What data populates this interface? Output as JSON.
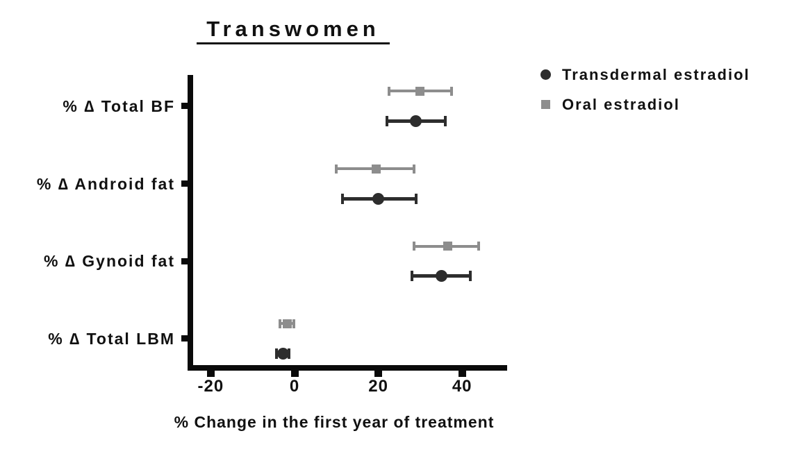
{
  "colors": {
    "transdermal": "#2d2d2d",
    "oral": "#8d8d8d",
    "axis": "#0a0a0a",
    "text": "#111111",
    "background": "#ffffff"
  },
  "legend": [
    {
      "name": "Transdermal estradiol",
      "marker": "circle",
      "color": "#2d2d2d"
    },
    {
      "name": "Oral estradiol",
      "marker": "square",
      "color": "#8d8d8d"
    }
  ],
  "chart_data": {
    "type": "scatter",
    "subtype": "horizontal-dot-plot-with-error-bars",
    "title": "Transwomen",
    "xlabel": "% Change in the first year of treatment",
    "ylabel": "",
    "categories": [
      "% ∆ Total BF",
      "% ∆ Android fat",
      "% ∆ Gynoid fat",
      "% ∆ Total LBM"
    ],
    "x_ticks": [
      -20,
      0,
      20,
      40
    ],
    "xlim": [
      -25.5,
      50.5
    ],
    "grid": false,
    "legend_position": "top-right",
    "row_order_within_group": [
      "Oral estradiol",
      "Transdermal estradiol"
    ],
    "series": [
      {
        "name": "Oral estradiol",
        "marker": "square",
        "color": "#8d8d8d",
        "points": [
          {
            "category": "% ∆ Total BF",
            "value": 30.0,
            "low": 22.5,
            "high": 37.5
          },
          {
            "category": "% ∆ Android fat",
            "value": 19.5,
            "low": 10.0,
            "high": 28.5
          },
          {
            "category": "% ∆ Gynoid fat",
            "value": 36.5,
            "low": 28.5,
            "high": 44.0
          },
          {
            "category": "% ∆ Total LBM",
            "value": -1.8,
            "low": -3.5,
            "high": -0.2
          }
        ]
      },
      {
        "name": "Transdermal estradiol",
        "marker": "circle",
        "color": "#2d2d2d",
        "points": [
          {
            "category": "% ∆ Total BF",
            "value": 29.0,
            "low": 22.0,
            "high": 36.0
          },
          {
            "category": "% ∆ Android fat",
            "value": 20.0,
            "low": 11.5,
            "high": 29.0
          },
          {
            "category": "% ∆ Gynoid fat",
            "value": 35.0,
            "low": 28.0,
            "high": 42.0
          },
          {
            "category": "% ∆ Total LBM",
            "value": -2.8,
            "low": -4.3,
            "high": -1.3
          }
        ]
      }
    ]
  }
}
